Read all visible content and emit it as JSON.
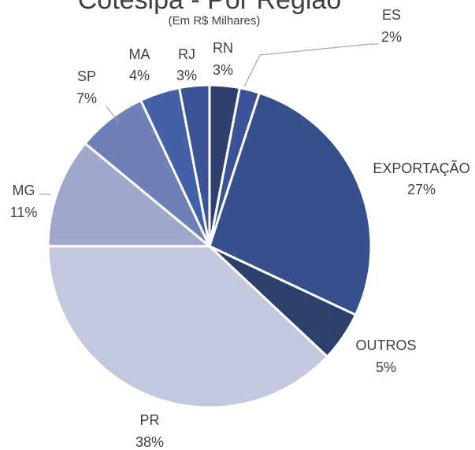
{
  "chart_data": {
    "type": "pie",
    "title": "Cotesipa - Por Região",
    "subtitle": "(Em R$ Milhares)",
    "categories": [
      "RN",
      "ES",
      "EXPORTAÇÃO",
      "OUTROS",
      "PR",
      "MG",
      "SP",
      "MA",
      "RJ"
    ],
    "values": [
      3,
      2,
      27,
      5,
      38,
      11,
      7,
      4,
      3
    ],
    "value_labels": [
      "3%",
      "2%",
      "27%",
      "5%",
      "38%",
      "11%",
      "7%",
      "4%",
      "3%"
    ],
    "colors": [
      "#2f406f",
      "#3a5398",
      "#35508b",
      "#2d3f6b",
      "#c3c8de",
      "#9fa7cb",
      "#6f80b8",
      "#4261a9",
      "#3b5495"
    ]
  }
}
